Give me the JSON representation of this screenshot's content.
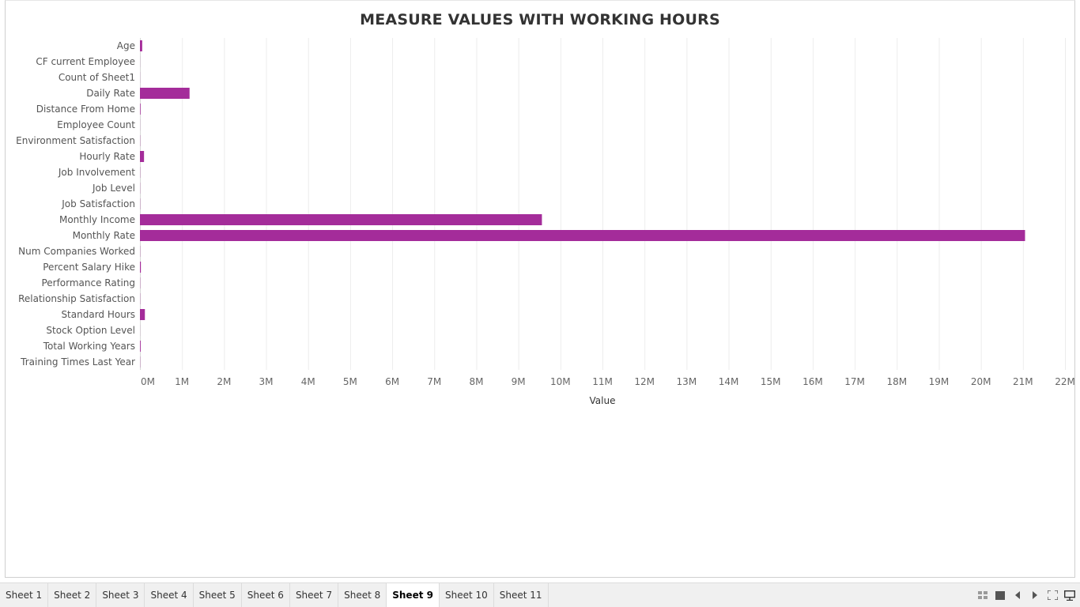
{
  "chart_data": {
    "type": "bar",
    "orientation": "horizontal",
    "title": "MEASURE VALUES WITH WORKING HOURS",
    "xlabel": "Value",
    "ylabel": "",
    "xlim": [
      0,
      22000000
    ],
    "x_ticks": [
      0,
      1000000,
      2000000,
      3000000,
      4000000,
      5000000,
      6000000,
      7000000,
      8000000,
      9000000,
      10000000,
      11000000,
      12000000,
      13000000,
      14000000,
      15000000,
      16000000,
      17000000,
      18000000,
      19000000,
      20000000,
      21000000,
      22000000
    ],
    "x_tick_labels": [
      "0M",
      "1M",
      "2M",
      "3M",
      "4M",
      "5M",
      "6M",
      "7M",
      "8M",
      "9M",
      "10M",
      "11M",
      "12M",
      "13M",
      "14M",
      "15M",
      "16M",
      "17M",
      "18M",
      "19M",
      "20M",
      "21M",
      "22M"
    ],
    "grid": "vertical",
    "categories": [
      "Age",
      "CF current Employee",
      "Count of Sheet1",
      "Daily Rate",
      "Distance From Home",
      "Employee Count",
      "Environment Satisfaction",
      "Hourly Rate",
      "Job Involvement",
      "Job Level",
      "Job Satisfaction",
      "Monthly Income",
      "Monthly Rate",
      "Num Companies Worked",
      "Percent Salary Hike",
      "Performance Rating",
      "Relationship Satisfaction",
      "Standard Hours",
      "Stock Option Level",
      "Total Working Years",
      "Training Times Last Year"
    ],
    "values": [
      54000,
      1233,
      1470,
      1180000,
      13500,
      1470,
      4000,
      97000,
      4000,
      3000,
      4000,
      9560000,
      21050000,
      4000,
      22000,
      4500,
      4000,
      117600,
      1200,
      16500,
      4000
    ],
    "bar_color": "#a42c9a"
  },
  "tabs": {
    "items": [
      "Sheet 1",
      "Sheet 2",
      "Sheet 3",
      "Sheet 4",
      "Sheet 5",
      "Sheet 6",
      "Sheet 7",
      "Sheet 8",
      "Sheet 9",
      "Sheet 10",
      "Sheet 11"
    ],
    "active": "Sheet 9"
  },
  "controls": [
    "show-sheet-sorter-icon",
    "show-tabs-icon",
    "previous-sheet-icon",
    "next-sheet-icon",
    "fullscreen-icon",
    "presentation-mode-icon"
  ]
}
